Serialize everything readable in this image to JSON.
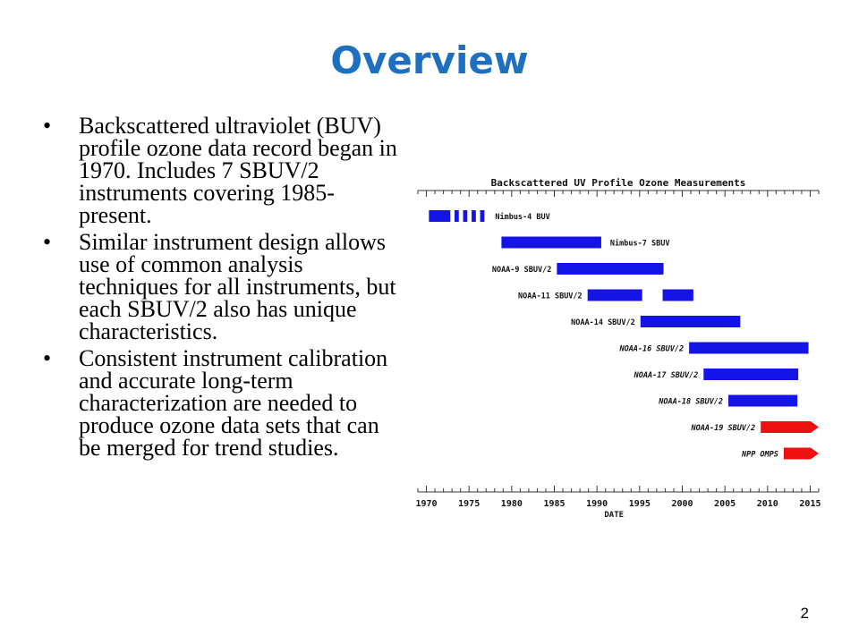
{
  "slide": {
    "title": "Overview",
    "bullets": [
      "Backscattered ultraviolet (BUV) profile ozone data record began in 1970. Includes 7 SBUV/2 instruments covering 1985-present.",
      "Similar instrument design allows use of common analysis techniques for all instruments, but each SBUV/2 also has unique characteristics.",
      "Consistent instrument calibration and accurate long-term characterization are needed to produce ozone data sets that can be merged for trend studies."
    ],
    "bullet_symbol": "•",
    "page_number": "2"
  },
  "chart_data": {
    "type": "timeline",
    "title": "Backscattered UV Profile Ozone Measurements",
    "xlabel": "DATE",
    "xlim": [
      1969,
      2016
    ],
    "xticks": [
      1970,
      1975,
      1980,
      1985,
      1990,
      1995,
      2000,
      2005,
      2010,
      2015
    ],
    "colors": {
      "bar": "#1414e6",
      "future": "#ee1111"
    },
    "instruments": [
      {
        "name": "Nimbus-4 BUV",
        "segments": [
          [
            1970.3,
            1972.8
          ],
          [
            1973.3,
            1973.8
          ],
          [
            1974.3,
            1974.8
          ],
          [
            1975.3,
            1975.8
          ],
          [
            1976.3,
            1976.8
          ]
        ],
        "label_style": "normal",
        "future": false
      },
      {
        "name": "Nimbus-7 SBUV",
        "segments": [
          [
            1978.8,
            1990.5
          ]
        ],
        "label_style": "normal",
        "future": false
      },
      {
        "name": "NOAA-9 SBUV/2",
        "segments": [
          [
            1985.3,
            1997.8
          ]
        ],
        "label_style": "normal",
        "future": false
      },
      {
        "name": "NOAA-11 SBUV/2",
        "segments": [
          [
            1988.9,
            1995.3
          ],
          [
            1997.7,
            2001.3
          ]
        ],
        "label_style": "normal",
        "future": false
      },
      {
        "name": "NOAA-14 SBUV/2",
        "segments": [
          [
            1995.1,
            2006.8
          ]
        ],
        "label_style": "normal",
        "future": false
      },
      {
        "name": "NOAA-16 SBUV/2",
        "segments": [
          [
            2000.8,
            2014.8
          ]
        ],
        "label_style": "italic",
        "future": false
      },
      {
        "name": "NOAA-17 SBUV/2",
        "segments": [
          [
            2002.5,
            2013.6
          ]
        ],
        "label_style": "italic",
        "future": false
      },
      {
        "name": "NOAA-18 SBUV/2",
        "segments": [
          [
            2005.4,
            2013.5
          ]
        ],
        "label_style": "italic",
        "future": false
      },
      {
        "name": "NOAA-19 SBUV/2",
        "segments": [
          [
            2009.2,
            2016.0
          ]
        ],
        "label_style": "italic",
        "future": true
      },
      {
        "name": "NPP OMPS",
        "segments": [
          [
            2011.9,
            2016.0
          ]
        ],
        "label_style": "italic",
        "future": true
      }
    ]
  }
}
